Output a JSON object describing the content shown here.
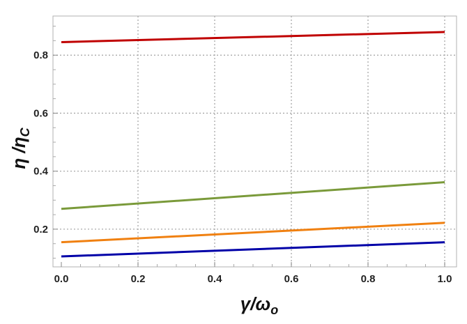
{
  "chart_data": {
    "type": "line",
    "title": "",
    "xlabel": "γ/ω",
    "xlabel_sub": "o",
    "ylabel": "η /η",
    "ylabel_sub": "C",
    "xlim": [
      0,
      1
    ],
    "ylim": [
      0.07,
      0.935
    ],
    "xticks": [
      0.0,
      0.2,
      0.4,
      0.6,
      0.8,
      1.0
    ],
    "xtick_labels": [
      "0.0",
      "0.2",
      "0.4",
      "0.6",
      "0.8",
      "1.0"
    ],
    "yticks": [
      0.2,
      0.4,
      0.6,
      0.8
    ],
    "ytick_labels": [
      "0.2",
      "0.4",
      "0.6",
      "0.8"
    ],
    "grid": true,
    "legend": "none",
    "series": [
      {
        "color": "#c00000",
        "x": [
          0,
          1
        ],
        "y": [
          0.845,
          0.88
        ]
      },
      {
        "color": "#7a9a3a",
        "x": [
          0,
          1
        ],
        "y": [
          0.27,
          0.362
        ]
      },
      {
        "color": "#f08010",
        "x": [
          0,
          1
        ],
        "y": [
          0.155,
          0.222
        ]
      },
      {
        "color": "#0000a8",
        "x": [
          0,
          1
        ],
        "y": [
          0.106,
          0.155
        ]
      }
    ]
  }
}
